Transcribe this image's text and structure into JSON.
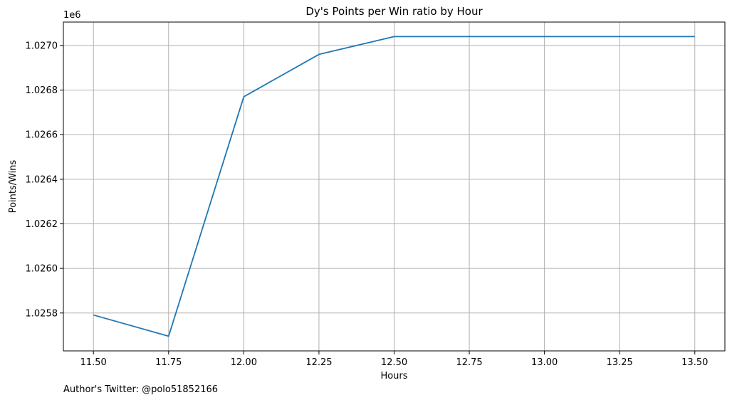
{
  "chart_data": {
    "type": "line",
    "title": "Dy's Points per Win ratio by Hour",
    "xlabel": "Hours",
    "ylabel": "Points/Wins",
    "y_offset_label": "1e6",
    "y_scale_factor": 1000000,
    "x": [
      11.5,
      11.75,
      12.0,
      12.25,
      12.5,
      12.75,
      13.0,
      13.25,
      13.5
    ],
    "series": [
      {
        "values": [
          1025791,
          1025696,
          1026770,
          1026960,
          1027040,
          1027040,
          1027040,
          1027040,
          1027040
        ]
      }
    ],
    "xlim": [
      11.4,
      13.6
    ],
    "ylim": [
      1025630,
      1027105
    ],
    "x_ticks": [
      11.5,
      11.75,
      12.0,
      12.25,
      12.5,
      12.75,
      13.0,
      13.25,
      13.5
    ],
    "x_tick_labels": [
      "11.50",
      "11.75",
      "12.00",
      "12.25",
      "12.50",
      "12.75",
      "13.00",
      "13.25",
      "13.50"
    ],
    "y_ticks": [
      1025800,
      1026000,
      1026200,
      1026400,
      1026600,
      1026800,
      1027000
    ],
    "y_tick_labels": [
      "1.0258",
      "1.0260",
      "1.0262",
      "1.0264",
      "1.0266",
      "1.0268",
      "1.0270"
    ],
    "grid": true,
    "line_color": "#1f77b4",
    "grid_color": "#b0b0b0"
  },
  "footnote": "Author's Twitter: @polo51852166"
}
